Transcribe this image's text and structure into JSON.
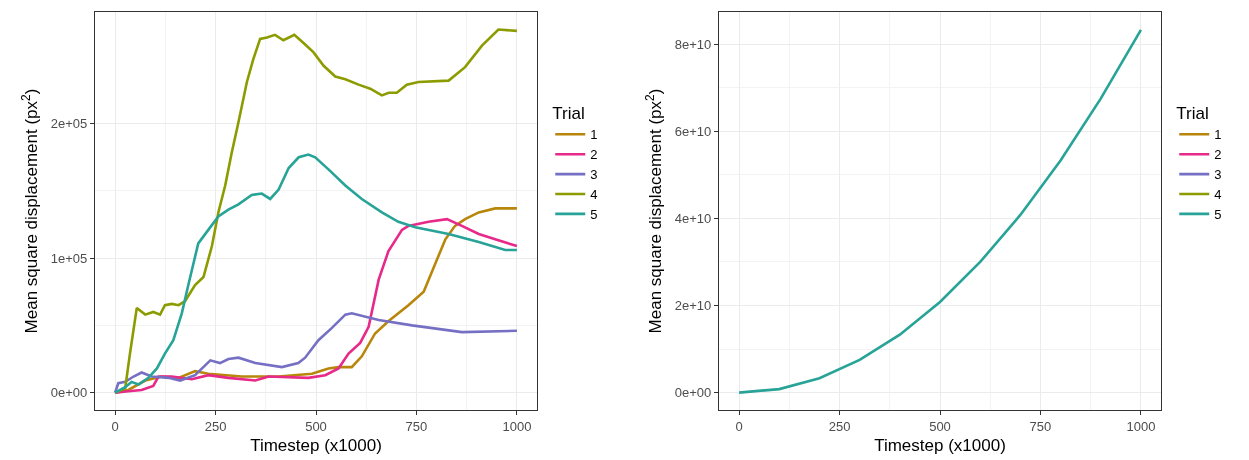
{
  "chart_data": [
    {
      "type": "line",
      "xlabel": "Timestep (x1000)",
      "ylabel": "Mean square displacement (px$^{2}$)",
      "legend_title": "Trial",
      "legend": "right",
      "grid": true,
      "line_style": "solid",
      "xlim": [
        -50,
        1050
      ],
      "xticks": [
        0,
        250,
        500,
        750,
        1000
      ],
      "ylim": [
        -12900,
        283000
      ],
      "yticks": [
        {
          "value": 0,
          "label": "0e+00"
        },
        {
          "value": 100000,
          "label": "1e+05"
        },
        {
          "value": 200000,
          "label": "2e+05"
        }
      ],
      "series": [
        {
          "name": "1",
          "color": "#b8860b",
          "x": [
            0,
            33,
            75,
            116,
            158,
            199,
            232,
            315,
            407,
            490,
            531,
            556,
            589,
            614,
            647,
            680,
            730,
            768,
            797,
            822,
            846,
            871,
            905,
            946,
            1000
          ],
          "values": [
            0,
            2000,
            9000,
            12000,
            11000,
            16000,
            14000,
            12000,
            12000,
            14000,
            18000,
            19000,
            19000,
            27000,
            44000,
            53000,
            65000,
            75000,
            96000,
            114000,
            124000,
            129000,
            134000,
            137000,
            137000
          ]
        },
        {
          "name": "2",
          "color": "#e7298a",
          "x": [
            0,
            33,
            66,
            95,
            108,
            141,
            191,
            232,
            282,
            349,
            382,
            481,
            523,
            556,
            581,
            610,
            631,
            656,
            680,
            714,
            730,
            780,
            826,
            863,
            905,
            946,
            1000
          ],
          "values": [
            0,
            1000,
            2000,
            5000,
            12000,
            12000,
            10000,
            13000,
            11000,
            9000,
            12000,
            11000,
            13000,
            18000,
            29000,
            37000,
            49000,
            84000,
            105000,
            121000,
            124000,
            127000,
            129000,
            124000,
            118000,
            114000,
            109000
          ]
        },
        {
          "name": "3",
          "color": "#7570c4",
          "x": [
            0,
            8,
            25,
            46,
            66,
            91,
            133,
            162,
            199,
            237,
            261,
            282,
            307,
            349,
            415,
            456,
            473,
            506,
            539,
            573,
            589,
            656,
            739,
            863,
            1000
          ],
          "values": [
            0,
            7000,
            8000,
            12000,
            15000,
            12000,
            11000,
            9000,
            13000,
            24000,
            22000,
            25000,
            26000,
            22000,
            19000,
            22000,
            26000,
            39000,
            48000,
            58000,
            59000,
            54000,
            50000,
            45000,
            46000
          ]
        },
        {
          "name": "4",
          "color": "#8c9c00",
          "x": [
            0,
            25,
            37,
            54,
            75,
            95,
            112,
            124,
            141,
            158,
            174,
            199,
            220,
            241,
            257,
            274,
            290,
            307,
            328,
            344,
            361,
            378,
            398,
            419,
            446,
            469,
            494,
            519,
            548,
            573,
            606,
            635,
            664,
            681,
            701,
            726,
            755,
            830,
            871,
            913,
            954,
            1000
          ],
          "values": [
            0,
            3000,
            29000,
            63000,
            58000,
            60000,
            58000,
            65000,
            66000,
            65000,
            68000,
            80000,
            86000,
            109000,
            134000,
            154000,
            178000,
            201000,
            231000,
            248000,
            263000,
            264000,
            266000,
            262000,
            266000,
            260000,
            253000,
            243000,
            235000,
            233000,
            229000,
            226000,
            221000,
            223000,
            223000,
            229000,
            231000,
            232000,
            242000,
            258000,
            270000,
            269000
          ]
        },
        {
          "name": "5",
          "color": "#27a397",
          "x": [
            0,
            25,
            41,
            58,
            83,
            104,
            124,
            145,
            166,
            183,
            207,
            232,
            257,
            282,
            307,
            340,
            365,
            386,
            407,
            432,
            457,
            481,
            498,
            531,
            573,
            614,
            664,
            705,
            747,
            830,
            905,
            971,
            1000
          ],
          "values": [
            0,
            4000,
            8000,
            6000,
            11000,
            18000,
            29000,
            39000,
            59000,
            81000,
            111000,
            121000,
            131000,
            136000,
            140000,
            147000,
            148000,
            144000,
            151000,
            167000,
            175000,
            177000,
            175000,
            166000,
            154000,
            144000,
            134000,
            127000,
            123000,
            118000,
            112000,
            106000,
            106000
          ]
        }
      ]
    },
    {
      "type": "line",
      "xlabel": "Timestep (x1000)",
      "ylabel": "Mean square displacement (px$^{2}$)",
      "legend_title": "Trial",
      "legend": "right",
      "grid": true,
      "line_style": "solid",
      "xlim": [
        -50,
        1050
      ],
      "xticks": [
        0,
        250,
        500,
        750,
        1000
      ],
      "ylim": [
        -4000000000,
        87400000000
      ],
      "yticks": [
        {
          "value": 0,
          "label": "0e+00"
        },
        {
          "value": 20000000000,
          "label": "2e+10"
        },
        {
          "value": 40000000000,
          "label": "4e+10"
        },
        {
          "value": 60000000000,
          "label": "6e+10"
        },
        {
          "value": 80000000000,
          "label": "8e+10"
        }
      ],
      "series": [
        {
          "name": "1",
          "color": "#b8860b"
        },
        {
          "name": "2",
          "color": "#e7298a"
        },
        {
          "name": "3",
          "color": "#7570c4"
        },
        {
          "name": "4",
          "color": "#8c9c00"
        },
        {
          "name": "5",
          "color": "#27a397",
          "x": [
            0,
            100,
            200,
            300,
            400,
            500,
            600,
            700,
            800,
            900,
            1000
          ],
          "values": [
            0,
            800000000,
            3300000000,
            7500000000,
            13300000000,
            20800000000,
            30000000000,
            40800000000,
            53300000000,
            67500000000,
            83300000000
          ]
        }
      ]
    }
  ]
}
